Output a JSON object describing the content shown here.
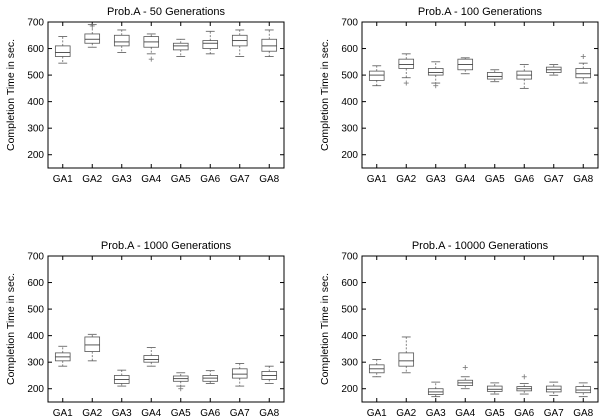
{
  "chart_data": [
    {
      "type": "box",
      "title": "Prob.A - 50 Generations",
      "ylabel": "Completion Time in sec.",
      "xlabel": "",
      "ylim": [
        150,
        700
      ],
      "yticks": [
        200,
        300,
        400,
        500,
        600,
        700
      ],
      "categories": [
        "GA1",
        "GA2",
        "GA3",
        "GA4",
        "GA5",
        "GA6",
        "GA7",
        "GA8"
      ],
      "boxes": [
        {
          "min": 545,
          "q1": 570,
          "median": 585,
          "q3": 610,
          "max": 645,
          "outliers": []
        },
        {
          "min": 605,
          "q1": 620,
          "median": 635,
          "q3": 655,
          "max": 690,
          "outliers": [
            685
          ]
        },
        {
          "min": 585,
          "q1": 610,
          "median": 625,
          "q3": 650,
          "max": 670,
          "outliers": []
        },
        {
          "min": 580,
          "q1": 605,
          "median": 625,
          "q3": 645,
          "max": 655,
          "outliers": [
            560
          ]
        },
        {
          "min": 570,
          "q1": 595,
          "median": 610,
          "q3": 620,
          "max": 635,
          "outliers": []
        },
        {
          "min": 580,
          "q1": 600,
          "median": 620,
          "q3": 630,
          "max": 665,
          "outliers": []
        },
        {
          "min": 570,
          "q1": 610,
          "median": 630,
          "q3": 650,
          "max": 670,
          "outliers": []
        },
        {
          "min": 570,
          "q1": 590,
          "median": 610,
          "q3": 635,
          "max": 670,
          "outliers": []
        }
      ]
    },
    {
      "type": "box",
      "title": "Prob.A - 100 Generations",
      "ylabel": "Completion Time in sec.",
      "xlabel": "",
      "ylim": [
        150,
        700
      ],
      "yticks": [
        200,
        300,
        400,
        500,
        600,
        700
      ],
      "categories": [
        "GA1",
        "GA2",
        "GA3",
        "GA4",
        "GA5",
        "GA6",
        "GA7",
        "GA8"
      ],
      "boxes": [
        {
          "min": 460,
          "q1": 480,
          "median": 500,
          "q3": 515,
          "max": 535,
          "outliers": []
        },
        {
          "min": 490,
          "q1": 525,
          "median": 540,
          "q3": 560,
          "max": 580,
          "outliers": [
            470
          ]
        },
        {
          "min": 470,
          "q1": 500,
          "median": 510,
          "q3": 525,
          "max": 550,
          "outliers": [
            460
          ]
        },
        {
          "min": 505,
          "q1": 520,
          "median": 540,
          "q3": 560,
          "max": 565,
          "outliers": []
        },
        {
          "min": 475,
          "q1": 485,
          "median": 495,
          "q3": 510,
          "max": 520,
          "outliers": []
        },
        {
          "min": 450,
          "q1": 485,
          "median": 500,
          "q3": 515,
          "max": 540,
          "outliers": []
        },
        {
          "min": 500,
          "q1": 510,
          "median": 520,
          "q3": 530,
          "max": 540,
          "outliers": []
        },
        {
          "min": 470,
          "q1": 490,
          "median": 505,
          "q3": 525,
          "max": 545,
          "outliers": [
            570
          ]
        }
      ]
    },
    {
      "type": "box",
      "title": "Prob.A - 1000 Generations",
      "ylabel": "Completion Time in sec.",
      "xlabel": "",
      "ylim": [
        150,
        700
      ],
      "yticks": [
        200,
        300,
        400,
        500,
        600,
        700
      ],
      "categories": [
        "GA1",
        "GA2",
        "GA3",
        "GA4",
        "GA5",
        "GA6",
        "GA7",
        "GA8"
      ],
      "boxes": [
        {
          "min": 285,
          "q1": 305,
          "median": 320,
          "q3": 335,
          "max": 360,
          "outliers": []
        },
        {
          "min": 305,
          "q1": 340,
          "median": 365,
          "q3": 395,
          "max": 405,
          "outliers": []
        },
        {
          "min": 210,
          "q1": 220,
          "median": 235,
          "q3": 250,
          "max": 270,
          "outliers": []
        },
        {
          "min": 285,
          "q1": 300,
          "median": 310,
          "q3": 325,
          "max": 355,
          "outliers": []
        },
        {
          "min": 210,
          "q1": 228,
          "median": 238,
          "q3": 248,
          "max": 260,
          "outliers": [
            200
          ]
        },
        {
          "min": 220,
          "q1": 228,
          "median": 240,
          "q3": 250,
          "max": 268,
          "outliers": []
        },
        {
          "min": 210,
          "q1": 240,
          "median": 255,
          "q3": 275,
          "max": 295,
          "outliers": []
        },
        {
          "min": 220,
          "q1": 235,
          "median": 250,
          "q3": 265,
          "max": 285,
          "outliers": []
        }
      ]
    },
    {
      "type": "box",
      "title": "Prob.A - 10000 Generations",
      "ylabel": "Completion Time in sec.",
      "xlabel": "",
      "ylim": [
        150,
        700
      ],
      "yticks": [
        200,
        300,
        400,
        500,
        600,
        700
      ],
      "categories": [
        "GA1",
        "GA2",
        "GA3",
        "GA4",
        "GA5",
        "GA6",
        "GA7",
        "GA8"
      ],
      "boxes": [
        {
          "min": 245,
          "q1": 260,
          "median": 275,
          "q3": 290,
          "max": 310,
          "outliers": []
        },
        {
          "min": 260,
          "q1": 285,
          "median": 305,
          "q3": 335,
          "max": 395,
          "outliers": []
        },
        {
          "min": 170,
          "q1": 178,
          "median": 188,
          "q3": 200,
          "max": 225,
          "outliers": []
        },
        {
          "min": 200,
          "q1": 212,
          "median": 222,
          "q3": 232,
          "max": 245,
          "outliers": [
            280
          ]
        },
        {
          "min": 180,
          "q1": 190,
          "median": 198,
          "q3": 210,
          "max": 222,
          "outliers": []
        },
        {
          "min": 180,
          "q1": 192,
          "median": 200,
          "q3": 208,
          "max": 220,
          "outliers": [
            245
          ]
        },
        {
          "min": 175,
          "q1": 188,
          "median": 198,
          "q3": 210,
          "max": 225,
          "outliers": []
        },
        {
          "min": 170,
          "q1": 185,
          "median": 195,
          "q3": 208,
          "max": 222,
          "outliers": []
        }
      ]
    }
  ]
}
